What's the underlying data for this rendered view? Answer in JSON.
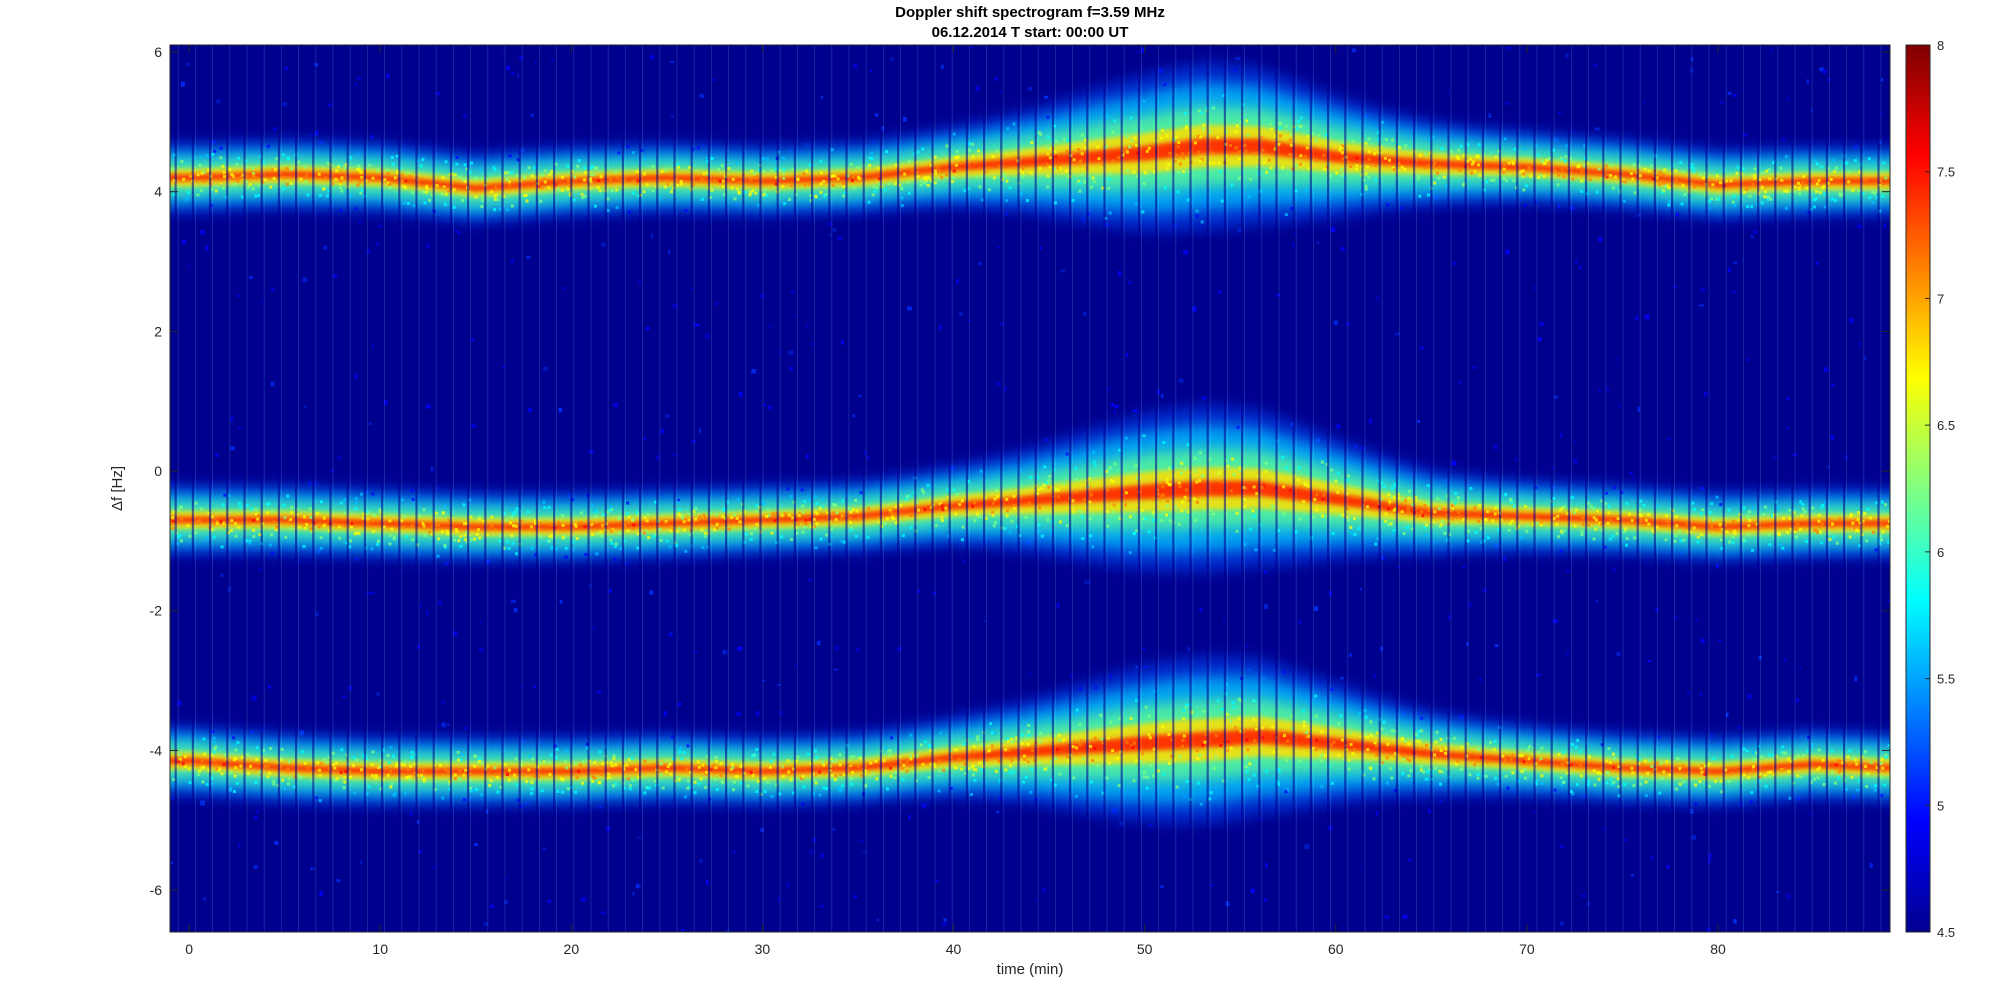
{
  "figure": {
    "title_line1": "Doppler shift spectrogram f=3.59 MHz",
    "title_line2": "06.12.2014   T start: 00:00 UT"
  },
  "chart_data": {
    "type": "heatmap",
    "title": "Doppler shift spectrogram f=3.59 MHz",
    "subtitle": "06.12.2014   T start: 00:00 UT",
    "xlabel": "time (min)",
    "ylabel": "Δf [Hz]",
    "xlim": [
      -1,
      89
    ],
    "ylim": [
      -6.6,
      6.1
    ],
    "x_ticks": [
      0,
      10,
      20,
      30,
      40,
      50,
      60,
      70,
      80
    ],
    "y_ticks": [
      -6,
      -4,
      -2,
      0,
      2,
      4,
      6
    ],
    "colorbar": {
      "colormap": "jet",
      "clim": [
        4.5,
        8
      ],
      "ticks": [
        4.5,
        5,
        5.5,
        6,
        6.5,
        7,
        7.5,
        8
      ]
    },
    "traces": [
      {
        "time": [
          0,
          5,
          10,
          15,
          20,
          25,
          30,
          35,
          40,
          45,
          50,
          53,
          56,
          60,
          65,
          70,
          75,
          80,
          85,
          89
        ],
        "freq": [
          4.2,
          4.25,
          4.2,
          4.05,
          4.15,
          4.2,
          4.15,
          4.2,
          4.35,
          4.45,
          4.55,
          4.65,
          4.65,
          4.5,
          4.4,
          4.35,
          4.25,
          4.1,
          4.15,
          4.15
        ]
      },
      {
        "time": [
          0,
          5,
          10,
          15,
          20,
          25,
          30,
          35,
          40,
          45,
          50,
          53,
          56,
          60,
          65,
          70,
          75,
          80,
          85,
          89
        ],
        "freq": [
          -0.7,
          -0.7,
          -0.75,
          -0.8,
          -0.8,
          -0.75,
          -0.7,
          -0.65,
          -0.5,
          -0.4,
          -0.3,
          -0.25,
          -0.25,
          -0.4,
          -0.6,
          -0.65,
          -0.7,
          -0.8,
          -0.75,
          -0.75
        ]
      },
      {
        "time": [
          0,
          5,
          10,
          15,
          20,
          25,
          30,
          35,
          40,
          45,
          50,
          53,
          56,
          60,
          65,
          70,
          75,
          80,
          85,
          89
        ],
        "freq": [
          -4.15,
          -4.25,
          -4.3,
          -4.3,
          -4.3,
          -4.25,
          -4.3,
          -4.25,
          -4.1,
          -4.0,
          -3.9,
          -3.85,
          -3.8,
          -3.9,
          -4.05,
          -4.15,
          -4.25,
          -4.3,
          -4.2,
          -4.25
        ]
      }
    ]
  }
}
